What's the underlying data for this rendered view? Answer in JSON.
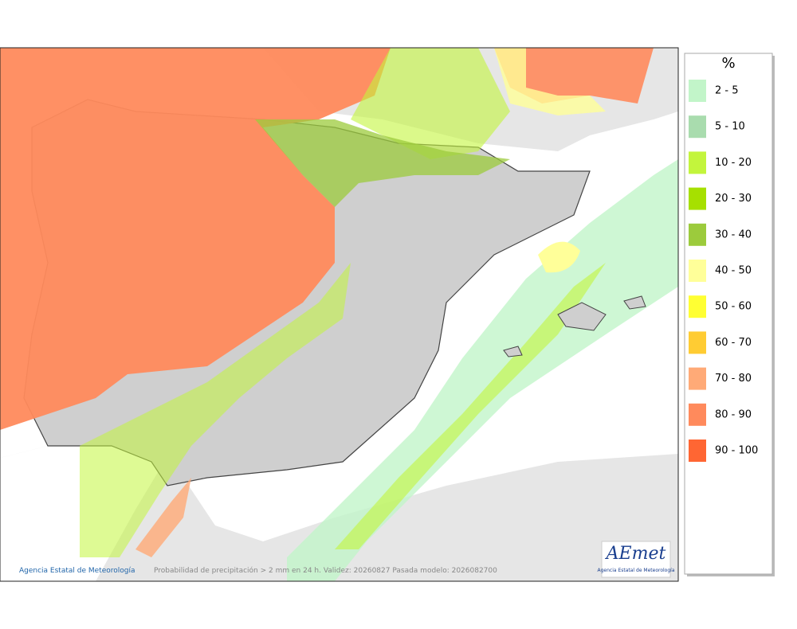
{
  "legend": {
    "title": "%",
    "items": [
      {
        "label": "2 - 5",
        "color": "#c2f5c9"
      },
      {
        "label": "5 - 10",
        "color": "#a9dcae"
      },
      {
        "label": "10 - 20",
        "color": "#c3f53c"
      },
      {
        "label": "20 - 30",
        "color": "#a6e000"
      },
      {
        "label": "30 - 40",
        "color": "#9ccb3c"
      },
      {
        "label": "40 - 50",
        "color": "#ffff99"
      },
      {
        "label": "50 - 60",
        "color": "#ffff33"
      },
      {
        "label": "60 - 70",
        "color": "#ffcc33"
      },
      {
        "label": "70 - 80",
        "color": "#ffaa77"
      },
      {
        "label": "80 - 90",
        "color": "#ff8a5c"
      },
      {
        "label": "90 - 100",
        "color": "#ff6633"
      }
    ]
  },
  "footer": {
    "credit": "Agencia Estatal de Meteorología",
    "caption": "Probabilidad de precipitación > 2 mm en 24 h. Validez: 20260827 Pasada modelo: 2026082700"
  },
  "logo": {
    "name": "AEmet",
    "subtitle": "Agencia Estatal de Meteorología"
  }
}
